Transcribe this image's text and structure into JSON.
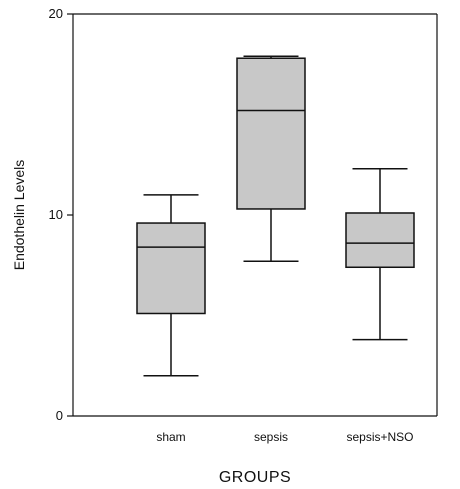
{
  "chart_data": {
    "type": "box",
    "title": "",
    "xlabel": "GROUPS",
    "ylabel": "Endothelin Levels",
    "ylim": [
      0,
      20
    ],
    "yticks": [
      0,
      10,
      20
    ],
    "grid": false,
    "categories": [
      "sham",
      "sepsis",
      "sepsis+NSO"
    ],
    "boxes": [
      {
        "category": "sham",
        "min": 2.0,
        "q1": 5.1,
        "median": 8.4,
        "q3": 9.6,
        "max": 11.0
      },
      {
        "category": "sepsis",
        "min": 7.7,
        "q1": 10.3,
        "median": 15.2,
        "q3": 17.8,
        "max": 17.9
      },
      {
        "category": "sepsis+NSO",
        "min": 3.8,
        "q1": 7.4,
        "median": 8.6,
        "q3": 10.1,
        "max": 12.3
      }
    ],
    "box_fill": "#c8c8c8",
    "line_color": "#111111"
  }
}
